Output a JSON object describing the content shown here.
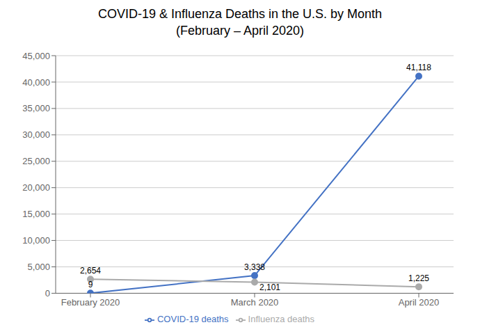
{
  "chart_data": {
    "type": "line",
    "title": "COVID-19 & Influenza Deaths in the U.S. by Month",
    "subtitle": "(February – April 2020)",
    "categories": [
      "February 2020",
      "March 2020",
      "April 2020"
    ],
    "series": [
      {
        "name": "COVID-19 deaths",
        "color": "#4472C4",
        "values": [
          9,
          3338,
          41118
        ],
        "value_labels": [
          "9",
          "3,338",
          "41,118"
        ],
        "marker": "circle"
      },
      {
        "name": "Influenza deaths",
        "color": "#AAAAAA",
        "values": [
          2654,
          2101,
          1225
        ],
        "value_labels": [
          "2,654",
          "2,101",
          "1,225"
        ],
        "marker": "circle"
      }
    ],
    "ylim": [
      0,
      45000
    ],
    "yticks": [
      0,
      {
        "value": 5000,
        "label": "5,000"
      },
      {
        "value": 10000,
        "label": "10,000"
      },
      {
        "value": 15000,
        "label": "15,000"
      },
      {
        "value": 20000,
        "label": "20,000"
      },
      {
        "value": 25000,
        "label": "25,000"
      },
      {
        "value": 30000,
        "label": "30,000"
      },
      {
        "value": 35000,
        "label": "35,000"
      },
      {
        "value": 40000,
        "label": "40,000"
      },
      {
        "value": 45000,
        "label": "45,000"
      }
    ],
    "grid": true,
    "legend": "bottom",
    "data_labels": true
  }
}
